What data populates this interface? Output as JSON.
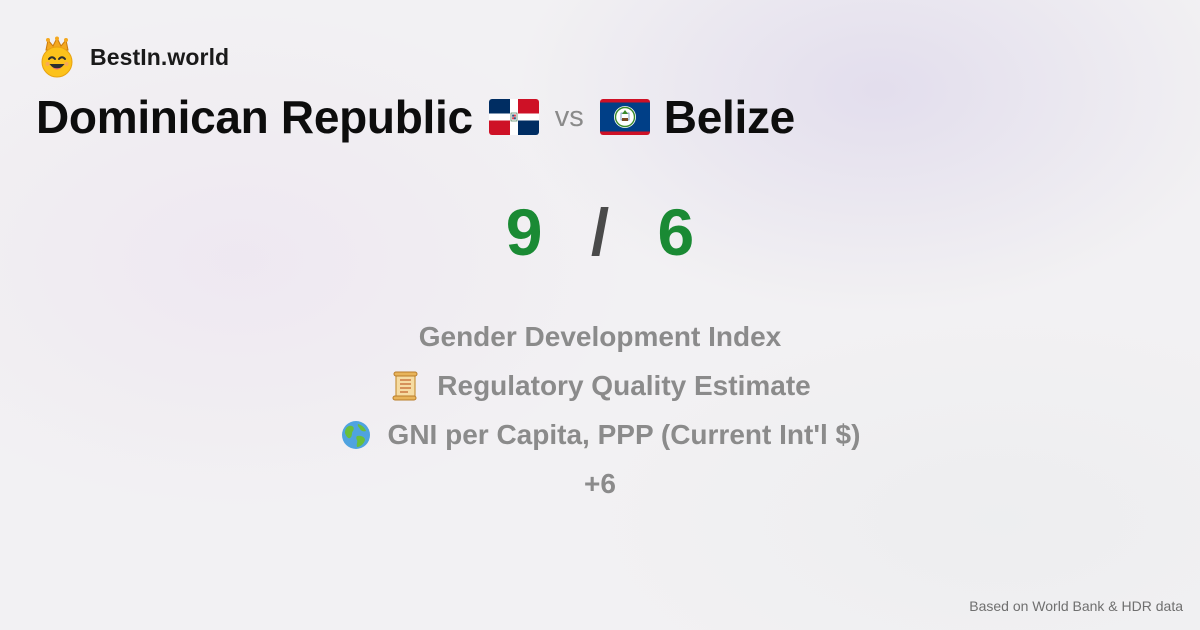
{
  "brand": {
    "name": "BestIn.world",
    "icon": "smiling-king-icon"
  },
  "comparison": {
    "country_a": "Dominican Republic",
    "country_b": "Belize",
    "vs_label": "vs",
    "flag_a": "dominican-republic-flag-icon",
    "flag_b": "belize-flag-icon"
  },
  "score": {
    "a": "9",
    "separator": "/",
    "b": "6",
    "color": "#1a8a34"
  },
  "metrics": [
    {
      "label": "Gender Development Index",
      "icon": ""
    },
    {
      "label": "Regulatory Quality Estimate",
      "icon": "scroll-icon"
    },
    {
      "label": "GNI per Capita, PPP (Current Int'l $)",
      "icon": "globe-icon"
    }
  ],
  "more_label": "+6",
  "footer": {
    "source": "Based on World Bank & HDR data"
  }
}
